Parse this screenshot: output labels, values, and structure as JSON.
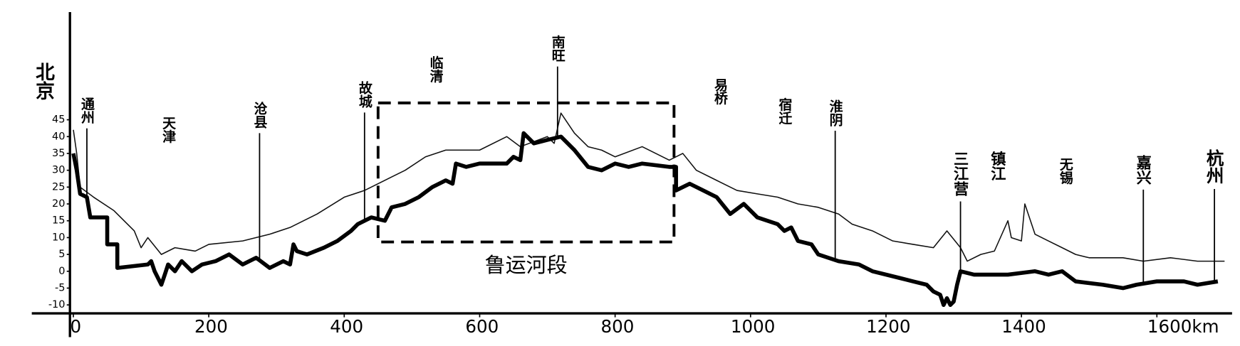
{
  "chart_data": {
    "type": "line",
    "xlim": [
      -5,
      1711
    ],
    "ylim": [
      -12.5,
      77
    ],
    "xticks": [
      0,
      200,
      400,
      600,
      800,
      1000,
      1200,
      1400,
      {
        "value": 1600,
        "label": "1600km"
      }
    ],
    "yticks": [
      -10,
      -5,
      0,
      5,
      10,
      15,
      20,
      25,
      30,
      35,
      40,
      45
    ],
    "series": [
      {
        "color": "#111111",
        "width": "thin",
        "x": [
          0,
          5,
          10,
          30,
          60,
          90,
          100,
          110,
          130,
          150,
          180,
          200,
          250,
          290,
          320,
          360,
          400,
          430,
          470,
          490,
          520,
          550,
          600,
          640,
          660,
          700,
          710,
          720,
          740,
          760,
          780,
          800,
          840,
          880,
          900,
          920,
          950,
          980,
          1010,
          1040,
          1070,
          1100,
          1130,
          1150,
          1180,
          1210,
          1240,
          1270,
          1290,
          1310,
          1320,
          1340,
          1360,
          1380,
          1385,
          1400,
          1405,
          1420,
          1440,
          1460,
          1480,
          1500,
          1550,
          1580,
          1620,
          1660,
          1700
        ],
        "values": [
          42,
          35,
          25,
          22,
          18,
          12,
          7,
          10,
          5,
          7,
          6,
          8,
          9,
          11,
          13,
          17,
          22,
          24,
          28,
          30,
          34,
          36,
          36,
          40,
          37,
          40,
          38,
          47,
          41,
          37,
          36,
          34,
          37,
          33,
          35,
          30,
          27,
          24,
          23,
          22,
          20,
          19,
          17,
          14,
          12,
          9,
          8,
          7,
          12,
          7,
          3,
          5,
          6,
          15,
          10,
          9,
          20,
          11,
          9,
          7,
          5,
          4,
          4,
          3,
          4,
          3,
          3
        ]
      },
      {
        "color": "#000000",
        "width": "thick",
        "x": [
          0,
          5,
          10,
          20,
          25,
          50,
          50,
          65,
          65,
          110,
          115,
          120,
          130,
          135,
          140,
          150,
          160,
          175,
          190,
          210,
          230,
          250,
          270,
          290,
          310,
          320,
          325,
          330,
          345,
          370,
          390,
          410,
          420,
          440,
          460,
          470,
          490,
          510,
          530,
          550,
          560,
          565,
          580,
          600,
          640,
          650,
          660,
          665,
          680,
          700,
          720,
          740,
          760,
          780,
          800,
          820,
          840,
          880,
          890,
          890,
          910,
          930,
          950,
          970,
          990,
          1010,
          1040,
          1050,
          1060,
          1070,
          1090,
          1100,
          1130,
          1160,
          1180,
          1220,
          1240,
          1260,
          1270,
          1280,
          1285,
          1290,
          1295,
          1300,
          1305,
          1310,
          1330,
          1380,
          1420,
          1440,
          1460,
          1480,
          1520,
          1550,
          1570,
          1600,
          1640,
          1660,
          1690
        ],
        "values": [
          35,
          30,
          23,
          22,
          16,
          16,
          8,
          8,
          1,
          2,
          3,
          0,
          -4,
          -1,
          2,
          0,
          3,
          0,
          2,
          3,
          5,
          2,
          4,
          1,
          3,
          2,
          8,
          6,
          5,
          7,
          9,
          12,
          14,
          16,
          15,
          19,
          20,
          22,
          25,
          27,
          26,
          32,
          31,
          32,
          32,
          34,
          33,
          41,
          38,
          39,
          40,
          36,
          31,
          30,
          32,
          31,
          32,
          31,
          31,
          24,
          26,
          24,
          22,
          17,
          20,
          16,
          14,
          12,
          13,
          9,
          8,
          5,
          3,
          2,
          0,
          -2,
          -3,
          -4,
          -6,
          -7,
          -10,
          -8,
          -10,
          -9,
          -4,
          0,
          -1,
          -1,
          0,
          -1,
          0,
          -3,
          -4,
          -5,
          -4,
          -3,
          -3,
          -4,
          -3
        ]
      }
    ],
    "annotations": [
      {
        "text": "北京",
        "x": 0,
        "line": false
      },
      {
        "text": "通州",
        "x": 20,
        "line": true
      },
      {
        "text": "天津",
        "x": 140,
        "line": false
      },
      {
        "text": "沧县",
        "x": 275,
        "line": true
      },
      {
        "text": "故城",
        "x": 430,
        "line": true
      },
      {
        "text": "临清",
        "x": 535,
        "line": false
      },
      {
        "text": "南旺",
        "x": 715,
        "line": true
      },
      {
        "text": "易桥",
        "x": 955,
        "line": false
      },
      {
        "text": "宿迁",
        "x": 1050,
        "line": false
      },
      {
        "text": "淮阴",
        "x": 1125,
        "line": true
      },
      {
        "text": "三江营",
        "x": 1310,
        "line": true
      },
      {
        "text": "镇江",
        "x": 1365,
        "line": false
      },
      {
        "text": "无锡",
        "x": 1465,
        "line": false
      },
      {
        "text": "嘉兴",
        "x": 1580,
        "line": true
      },
      {
        "text": "杭州",
        "x": 1685,
        "line": true
      }
    ],
    "box": {
      "label": "鲁运河段",
      "x": [
        450,
        887
      ],
      "y": [
        8.7,
        50
      ]
    }
  }
}
